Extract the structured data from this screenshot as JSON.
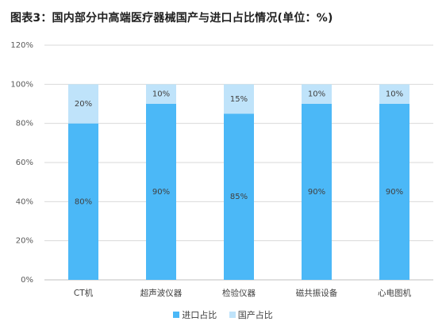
{
  "title": "图表3：国内部分中高端医疗器械国产与进口占比情况(单位：%)",
  "colors": {
    "import": "#4bb8f7",
    "domestic": "#bfe3fa",
    "grid": "#d9d9d9",
    "axis": "#bfbfbf"
  },
  "chart_data": {
    "type": "bar",
    "stacked": true,
    "categories": [
      "CT机",
      "超声波仪器",
      "检验仪器",
      "磁共振设备",
      "心电图机"
    ],
    "series": [
      {
        "name": "进口占比",
        "values": [
          80,
          90,
          85,
          90,
          90
        ]
      },
      {
        "name": "国产占比",
        "values": [
          20,
          10,
          15,
          10,
          10
        ]
      }
    ],
    "ylim": [
      0,
      120
    ],
    "yticks": [
      0,
      20,
      40,
      60,
      80,
      100,
      120
    ],
    "ytick_labels": [
      "0%",
      "20%",
      "40%",
      "60%",
      "80%",
      "100%",
      "120%"
    ],
    "grid": true,
    "legend_position": "bottom"
  }
}
